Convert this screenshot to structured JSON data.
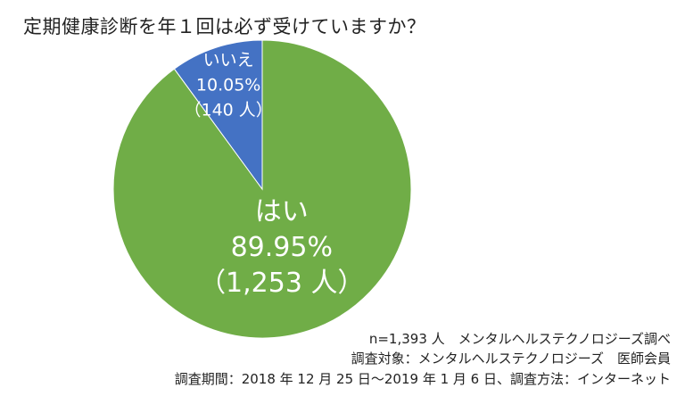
{
  "chart_data": {
    "type": "pie",
    "title": "定期健康診断を年１回は必ず受けていますか？",
    "slices": [
      {
        "label": "はい",
        "percent": 89.95,
        "percent_label": "89.95%",
        "count_label": "（1,253 人）",
        "color": "#70AD47"
      },
      {
        "label": "いいえ",
        "percent": 10.05,
        "percent_label": "10.05%",
        "count_label": "（140 人）",
        "color": "#4472C4"
      }
    ]
  },
  "footer": {
    "line1": "n=1,393 人　メンタルヘルステクノロジーズ調べ",
    "line2": "調査対象：メンタルヘルステクノロジーズ　医師会員",
    "line3": "調査期間：2018 年 12 月 25 日～2019 年 1 月 6 日、調査方法：インターネット"
  }
}
